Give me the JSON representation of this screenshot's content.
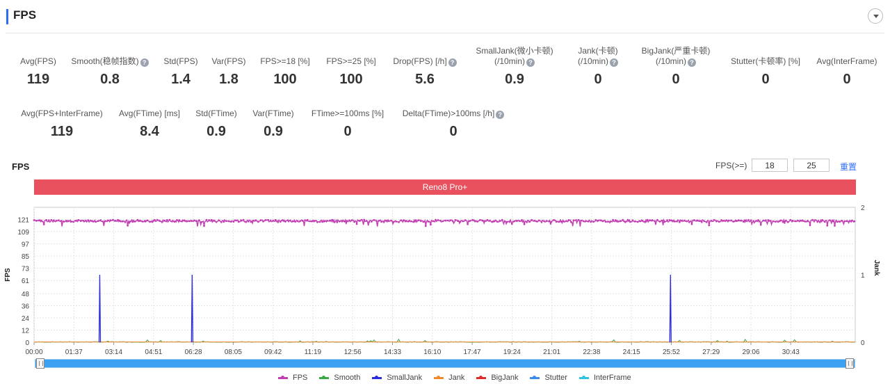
{
  "header": {
    "title": "FPS"
  },
  "metrics_row1": [
    {
      "label": "Avg(FPS)",
      "value": "119",
      "help": false
    },
    {
      "label": "Smooth(稳帧指数)",
      "value": "0.8",
      "help": true
    },
    {
      "label": "Std(FPS)",
      "value": "1.4",
      "help": false
    },
    {
      "label": "Var(FPS)",
      "value": "1.8",
      "help": false
    },
    {
      "label": "FPS>=18 [%]",
      "value": "100",
      "help": false
    },
    {
      "label": "FPS>=25 [%]",
      "value": "100",
      "help": false
    },
    {
      "label": "Drop(FPS) [/h]",
      "value": "5.6",
      "help": true
    },
    {
      "label": "SmallJank(微小卡顿)",
      "label2": "(/10min)",
      "value": "0.9",
      "help": true
    },
    {
      "label": "Jank(卡顿)",
      "label2": "(/10min)",
      "value": "0",
      "help": true
    },
    {
      "label": "BigJank(严重卡顿)",
      "label2": "(/10min)",
      "value": "0",
      "help": true
    },
    {
      "label": "Stutter(卡顿率) [%]",
      "value": "0",
      "help": false
    },
    {
      "label": "Avg(InterFrame)",
      "value": "0",
      "help": false
    }
  ],
  "metrics_row2": [
    {
      "label": "Avg(FPS+InterFrame)",
      "value": "119",
      "help": false
    },
    {
      "label": "Avg(FTime) [ms]",
      "value": "8.4",
      "help": false
    },
    {
      "label": "Std(FTime)",
      "value": "0.9",
      "help": false
    },
    {
      "label": "Var(FTime)",
      "value": "0.9",
      "help": false
    },
    {
      "label": "FTime>=100ms [%]",
      "value": "0",
      "help": false
    },
    {
      "label": "Delta(FTime)>100ms [/h]",
      "value": "0",
      "help": true
    }
  ],
  "help_glyph": "?",
  "chart_section": {
    "title": "FPS",
    "threshold_label": "FPS(>=)",
    "threshold_1": "18",
    "threshold_2": "25",
    "reset_label": "重置",
    "device_label": "Reno8 Pro+"
  },
  "chart_data": {
    "type": "line",
    "ylabel_left": "FPS",
    "ylabel_right": "Jank",
    "y_left_ticks": [
      "0",
      "12",
      "24",
      "36",
      "48",
      "61",
      "73",
      "85",
      "97",
      "109",
      "121"
    ],
    "y_left_range": [
      0,
      133
    ],
    "y_right_ticks": [
      "0",
      "1",
      "2"
    ],
    "y_right_range": [
      0,
      2
    ],
    "x_ticks": [
      "00:00",
      "01:37",
      "03:14",
      "04:51",
      "06:28",
      "08:05",
      "09:42",
      "11:19",
      "12:56",
      "14:33",
      "16:10",
      "17:47",
      "19:24",
      "21:01",
      "22:38",
      "24:15",
      "25:52",
      "27:29",
      "29:06",
      "30:43"
    ],
    "x_range_seconds": [
      0,
      2000
    ],
    "grid": true,
    "legend_position": "bottom",
    "series": [
      {
        "name": "FPS",
        "color": "#c23fb3",
        "axis": "left",
        "baseline": 119.5,
        "min_dip": 114,
        "style": "dense-markers"
      },
      {
        "name": "Smooth",
        "color": "#3aa845",
        "axis": "left",
        "values_note": "near 0"
      },
      {
        "name": "SmallJank",
        "color": "#2b2be0",
        "axis": "right",
        "spikes_at": [
          "02:40",
          "06:25",
          "25:50"
        ],
        "spike_value": 1
      },
      {
        "name": "Jank",
        "color": "#f28a2b",
        "axis": "right"
      },
      {
        "name": "BigJank",
        "color": "#e02b2b",
        "axis": "right"
      },
      {
        "name": "Stutter",
        "color": "#3b8cf0",
        "axis": "left"
      },
      {
        "name": "InterFrame",
        "color": "#2fc3e0",
        "axis": "left"
      }
    ]
  }
}
